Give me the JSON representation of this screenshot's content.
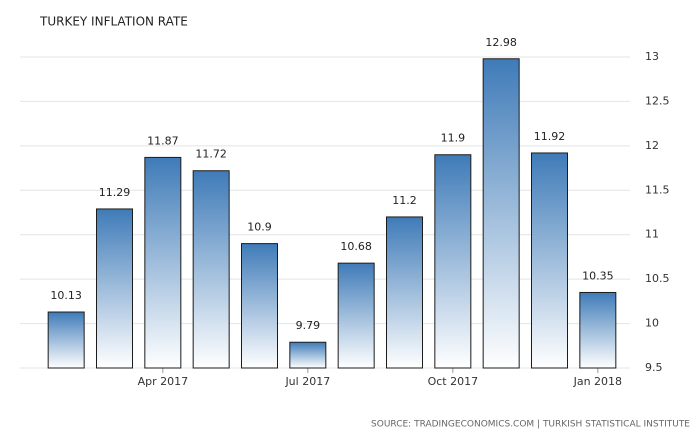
{
  "chart_data": {
    "type": "bar",
    "title": "TURKEY INFLATION RATE",
    "source": "SOURCE: TRADINGECONOMICS.COM | TURKISH STATISTICAL INSTITUTE",
    "categories": [
      null,
      null,
      "Apr 2017",
      null,
      null,
      "Jul 2017",
      null,
      null,
      "Oct 2017",
      null,
      null,
      "Jan 2018"
    ],
    "values": [
      10.13,
      11.29,
      11.87,
      11.72,
      10.9,
      9.79,
      10.68,
      11.2,
      11.9,
      12.98,
      11.92,
      10.35
    ],
    "color": "#3f7bb8",
    "ylim": [
      9.5,
      13
    ],
    "yticks": [
      9.5,
      10,
      10.5,
      11,
      11.5,
      12,
      12.5,
      13
    ],
    "grid": true
  }
}
